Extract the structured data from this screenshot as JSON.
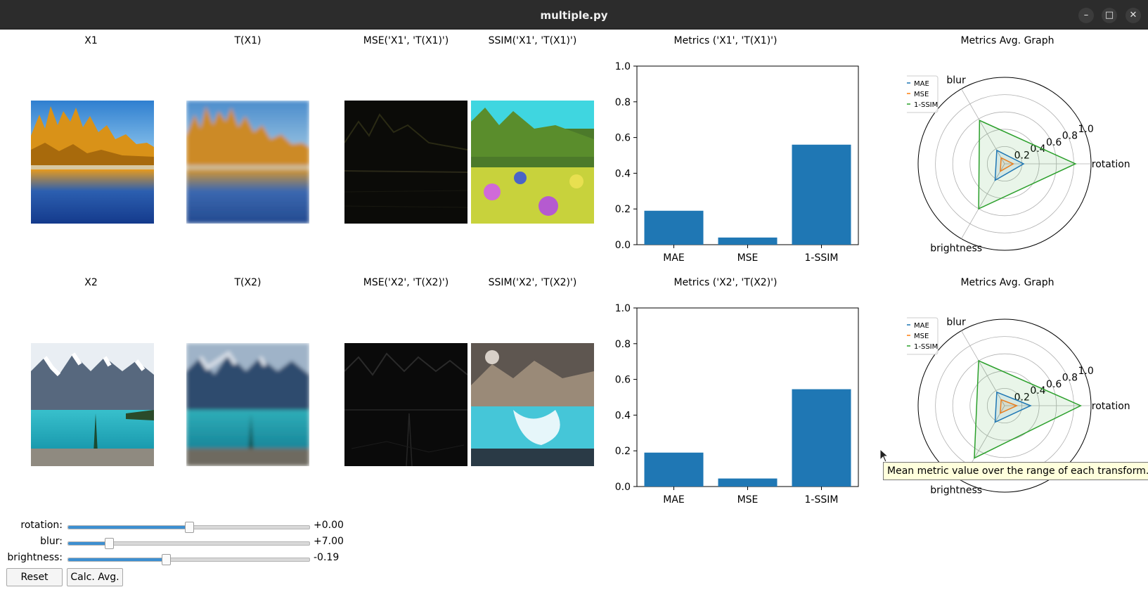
{
  "window": {
    "title": "multiple.py",
    "controls": [
      "–",
      "□",
      "✕"
    ]
  },
  "rows": [
    {
      "titles": [
        "X1",
        "T(X1)",
        "MSE('X1', 'T(X1)')",
        "SSIM('X1', 'T(X1)')"
      ],
      "metrics_title": "Metrics ('X1', 'T(X1)')",
      "radar_title": "Metrics Avg. Graph"
    },
    {
      "titles": [
        "X2",
        "T(X2)",
        "MSE('X2', 'T(X2)')",
        "SSIM('X2', 'T(X2)')"
      ],
      "metrics_title": "Metrics ('X2', 'T(X2)')",
      "radar_title": "Metrics Avg. Graph"
    }
  ],
  "chart_data": [
    {
      "type": "bar",
      "title": "Metrics ('X1', 'T(X1)')",
      "categories": [
        "MAE",
        "MSE",
        "1-SSIM"
      ],
      "values": [
        0.19,
        0.04,
        0.56
      ],
      "ylim": [
        0,
        1.0
      ],
      "yticks": [
        "0.0",
        "0.2",
        "0.4",
        "0.6",
        "0.8",
        "1.0"
      ],
      "color": "#1f77b4"
    },
    {
      "type": "bar",
      "title": "Metrics ('X2', 'T(X2)')",
      "categories": [
        "MAE",
        "MSE",
        "1-SSIM"
      ],
      "values": [
        0.19,
        0.045,
        0.545
      ],
      "ylim": [
        0,
        1.0
      ],
      "yticks": [
        "0.0",
        "0.2",
        "0.4",
        "0.6",
        "0.8",
        "1.0"
      ],
      "color": "#1f77b4"
    },
    {
      "type": "radar",
      "title": "Metrics Avg. Graph",
      "axes": [
        "rotation",
        "blur",
        "brightness"
      ],
      "rticks": [
        "0.2",
        "0.4",
        "0.6",
        "0.8",
        "1.0"
      ],
      "rlim": [
        0,
        1.0
      ],
      "legend": "top-left",
      "series": [
        {
          "name": "MAE",
          "color": "#1f77b4",
          "values": [
            0.22,
            0.18,
            0.22
          ]
        },
        {
          "name": "MSE",
          "color": "#ff7f0e",
          "values": [
            0.1,
            0.08,
            0.1
          ]
        },
        {
          "name": "1-SSIM",
          "color": "#2ca02c",
          "values": [
            0.82,
            0.58,
            0.6
          ]
        }
      ]
    },
    {
      "type": "radar",
      "title": "Metrics Avg. Graph",
      "axes": [
        "rotation",
        "blur",
        "brightness"
      ],
      "rticks": [
        "0.2",
        "0.4",
        "0.6",
        "0.8",
        "1.0"
      ],
      "rlim": [
        0,
        1.0
      ],
      "legend": "top-left",
      "series": [
        {
          "name": "MAE",
          "color": "#1f77b4",
          "values": [
            0.3,
            0.18,
            0.22
          ]
        },
        {
          "name": "MSE",
          "color": "#ff7f0e",
          "values": [
            0.14,
            0.08,
            0.1
          ]
        },
        {
          "name": "1-SSIM",
          "color": "#2ca02c",
          "values": [
            0.88,
            0.6,
            0.7
          ]
        }
      ]
    }
  ],
  "sliders": [
    {
      "label": "rotation:",
      "value": "+0.00",
      "fraction": 0.5
    },
    {
      "label": "blur:",
      "value": "+7.00",
      "fraction": 0.17
    },
    {
      "label": "brightness:",
      "value": "-0.19",
      "fraction": 0.405
    }
  ],
  "buttons": {
    "reset": "Reset",
    "calc_avg": "Calc. Avg."
  },
  "tooltip": "Mean metric value over the range of each transform."
}
